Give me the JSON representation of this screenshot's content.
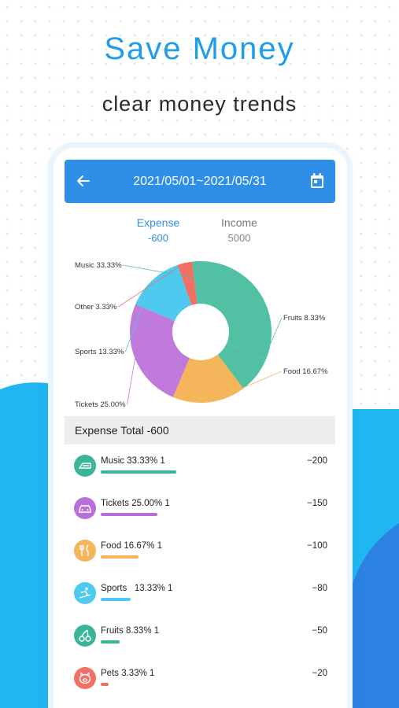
{
  "headline": "Save Money",
  "subheadline": "clear money trends",
  "appbar": {
    "date_range": "2021/05/01~2021/05/31",
    "back_icon": "arrow-left-icon",
    "calendar_icon": "calendar-icon"
  },
  "tabs": {
    "expense": {
      "label": "Expense",
      "amount": "-600"
    },
    "income": {
      "label": "Income",
      "amount": "5000"
    }
  },
  "chart_data": {
    "type": "pie",
    "donut": true,
    "labels": [
      "Music 33.33%",
      "Fruits 8.33%",
      "Food 16.67%",
      "Tickets 25.00%",
      "Sports  13.33%",
      "Other 3.33%"
    ],
    "values": [
      33.33,
      8.33,
      16.67,
      25.0,
      13.33,
      3.33
    ],
    "colors": [
      "#52c0a2",
      "#52c0a2",
      "#f5b55a",
      "#bf7adb",
      "#4ec9f0",
      "#f07064"
    ]
  },
  "summary": {
    "total_label": "Expense Total -600"
  },
  "categories": [
    {
      "name": "Music 33.33% 1",
      "amount": "−200",
      "fraction": 0.333,
      "color": "#3ab59a",
      "icon": "piano-icon"
    },
    {
      "name": "Tickets 25.00% 1",
      "amount": "−150",
      "fraction": 0.25,
      "color": "#b870d8",
      "icon": "car-icon"
    },
    {
      "name": "Food 16.67% 1",
      "amount": "−100",
      "fraction": 0.167,
      "color": "#f5b55a",
      "icon": "cutlery-icon"
    },
    {
      "name": "Sports   13.33% 1",
      "amount": "−80",
      "fraction": 0.133,
      "color": "#4ec9f0",
      "icon": "skiing-icon"
    },
    {
      "name": "Fruits 8.33% 1",
      "amount": "−50",
      "fraction": 0.083,
      "color": "#3ab59a",
      "icon": "cherry-icon"
    },
    {
      "name": "Pets 3.33% 1",
      "amount": "−20",
      "fraction": 0.033,
      "color": "#f07064",
      "icon": "pig-icon"
    }
  ]
}
